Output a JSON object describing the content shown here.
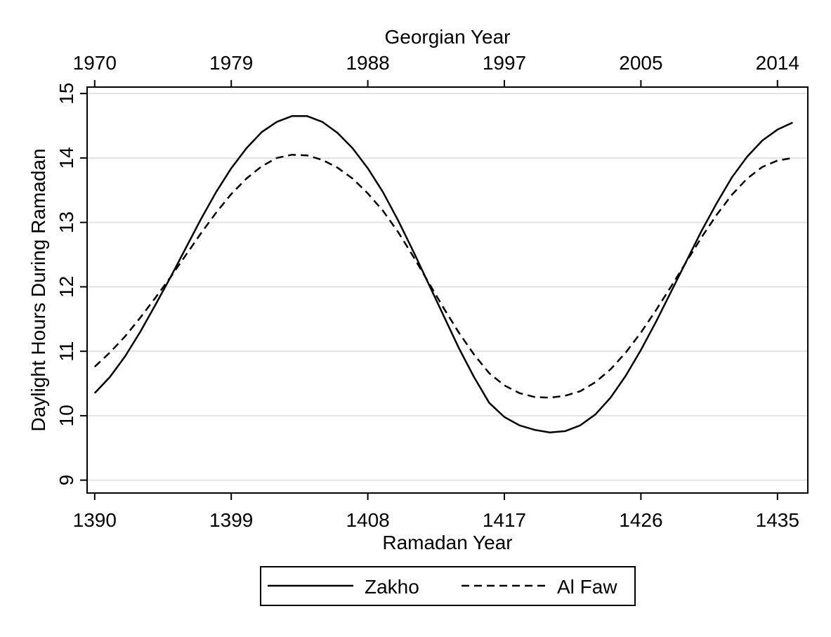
{
  "chart_data": {
    "type": "line",
    "title": "",
    "xlabel": "Ramadan Year",
    "x2label": "Georgian Year",
    "ylabel": "Daylight Hours During Ramadan",
    "xlim": [
      1389.5,
      1437.0
    ],
    "ylim": [
      8.8,
      15.1
    ],
    "xticks": [
      1390,
      1399,
      1408,
      1417,
      1426,
      1435
    ],
    "xtick_labels": [
      "1390",
      "1399",
      "1408",
      "1417",
      "1426",
      "1435"
    ],
    "x2ticks": [
      1390,
      1399,
      1408,
      1417,
      1426,
      1435
    ],
    "x2tick_labels": [
      "1970",
      "1979",
      "1988",
      "1997",
      "2005",
      "2014"
    ],
    "yticks": [
      9,
      10,
      11,
      12,
      13,
      14,
      15
    ],
    "ytick_labels": [
      "9",
      "10",
      "11",
      "12",
      "13",
      "14",
      "15"
    ],
    "grid": true,
    "legend_position": "bottom",
    "x": [
      1390,
      1391,
      1392,
      1393,
      1394,
      1395,
      1396,
      1397,
      1398,
      1399,
      1400,
      1401,
      1402,
      1403,
      1404,
      1405,
      1406,
      1407,
      1408,
      1409,
      1410,
      1411,
      1412,
      1413,
      1414,
      1415,
      1416,
      1417,
      1418,
      1419,
      1420,
      1421,
      1422,
      1423,
      1424,
      1425,
      1426,
      1427,
      1428,
      1429,
      1430,
      1431,
      1432,
      1433,
      1434,
      1435,
      1436
    ],
    "series": [
      {
        "name": "Zakho",
        "style": "solid",
        "values": [
          10.35,
          10.6,
          10.92,
          11.3,
          11.72,
          12.15,
          12.6,
          13.05,
          13.47,
          13.84,
          14.15,
          14.4,
          14.56,
          14.65,
          14.65,
          14.56,
          14.39,
          14.15,
          13.84,
          13.47,
          13.03,
          12.55,
          12.05,
          11.55,
          11.05,
          10.6,
          10.2,
          9.98,
          9.85,
          9.78,
          9.74,
          9.76,
          9.85,
          10.02,
          10.28,
          10.62,
          11.02,
          11.46,
          11.93,
          12.4,
          12.87,
          13.3,
          13.7,
          14.02,
          14.27,
          14.44,
          14.55
        ]
      },
      {
        "name": "Al Faw",
        "style": "dashed",
        "values": [
          10.76,
          10.98,
          11.23,
          11.52,
          11.83,
          12.15,
          12.49,
          12.83,
          13.15,
          13.44,
          13.68,
          13.87,
          14.0,
          14.05,
          14.04,
          13.97,
          13.85,
          13.68,
          13.45,
          13.18,
          12.85,
          12.47,
          12.07,
          11.67,
          11.29,
          10.95,
          10.66,
          10.47,
          10.35,
          10.29,
          10.28,
          10.31,
          10.38,
          10.52,
          10.72,
          10.98,
          11.29,
          11.64,
          12.01,
          12.39,
          12.77,
          13.12,
          13.43,
          13.68,
          13.86,
          13.96,
          14.0
        ]
      }
    ]
  }
}
